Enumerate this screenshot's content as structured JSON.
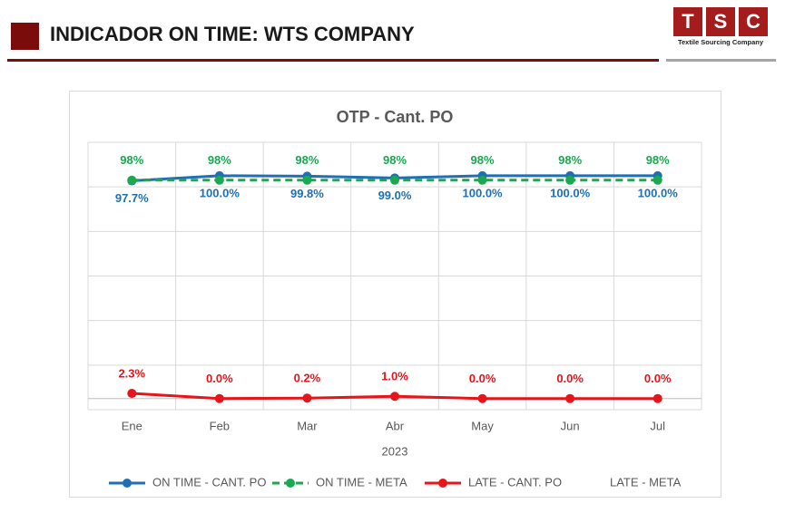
{
  "header": {
    "title": "INDICADOR ON TIME: WTS COMPANY",
    "logo_letters": [
      "T",
      "S",
      "C"
    ],
    "logo_caption": "Textile Sourcing Company"
  },
  "chart_data": {
    "type": "line",
    "title": "OTP - Cant. PO",
    "x_label": "2023",
    "categories": [
      "Ene",
      "Feb",
      "Mar",
      "Abr",
      "May",
      "Jun",
      "Jul"
    ],
    "ylim": [
      -5,
      115
    ],
    "yticks": [
      -5,
      15,
      35,
      55,
      75,
      95,
      115
    ],
    "grid": true,
    "legend": "bottom",
    "series": [
      {
        "name": "ON TIME - CANT. PO",
        "color": "#1f6fb5",
        "style": "solid",
        "label_position": "below",
        "values": [
          97.7,
          100,
          99.8,
          99,
          100,
          100,
          100
        ],
        "value_labels": [
          "97.7%",
          "100.0%",
          "99.8%",
          "99.0%",
          "100.0%",
          "100.0%",
          "100.0%"
        ]
      },
      {
        "name": "ON TIME - META",
        "color": "#1aa851",
        "style": "dashed",
        "label_position": "above",
        "values": [
          98,
          98,
          98,
          98,
          98,
          98,
          98
        ],
        "value_labels": [
          "98%",
          "98%",
          "98%",
          "98%",
          "98%",
          "98%",
          "98%"
        ]
      },
      {
        "name": "LATE - CANT. PO",
        "color": "#e8141b",
        "style": "solid",
        "label_position": "above",
        "values": [
          2.3,
          0,
          0.2,
          1,
          0,
          0,
          0
        ],
        "value_labels": [
          "2.3%",
          "0.0%",
          "0.2%",
          "1.0%",
          "0.0%",
          "0.0%",
          "0.0%"
        ]
      },
      {
        "name": "LATE - META",
        "color": null,
        "style": "none",
        "label_position": null,
        "values": [
          null,
          null,
          null,
          null,
          null,
          null,
          null
        ]
      }
    ]
  }
}
